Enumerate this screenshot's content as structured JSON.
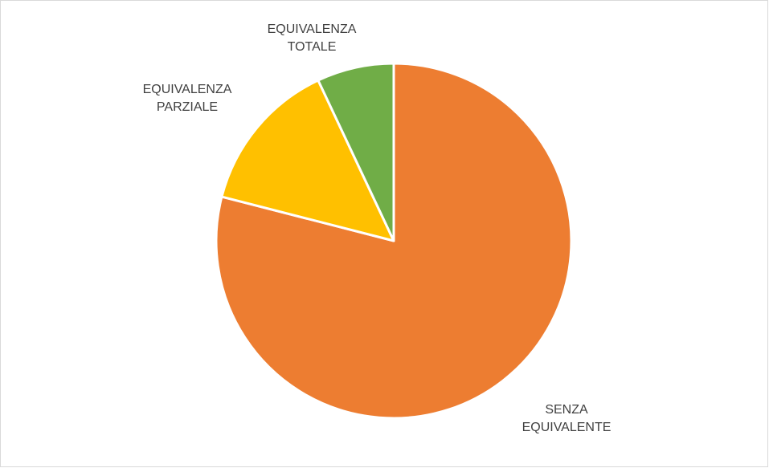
{
  "chart_data": {
    "type": "pie",
    "categories": [
      "SENZA EQUIVALENTE",
      "EQUIVALENZA PARZIALE",
      "EQUIVALENZA TOTALE"
    ],
    "values": [
      79,
      14,
      7
    ],
    "colors": [
      "#ed7d31",
      "#ffc000",
      "#70ad47"
    ]
  }
}
